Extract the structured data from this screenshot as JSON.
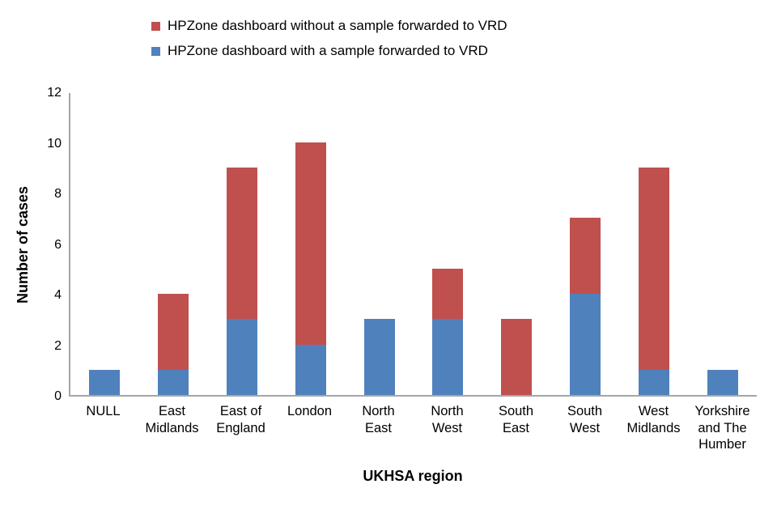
{
  "legend": {
    "items": [
      {
        "label": "HPZone dashboard without a sample forwarded to VRD",
        "color": "#c0504d"
      },
      {
        "label": "HPZone dashboard with a sample forwarded to VRD",
        "color": "#4f81bd"
      }
    ]
  },
  "axes": {
    "y_label": "Number of cases",
    "x_label": "UKHSA region",
    "y_ticks": [
      0,
      2,
      4,
      6,
      8,
      10,
      12
    ]
  },
  "chart_data": {
    "type": "bar",
    "stacked": true,
    "title": "",
    "xlabel": "UKHSA region",
    "ylabel": "Number of cases",
    "ylim": [
      0,
      12
    ],
    "grid": false,
    "legend_position": "top",
    "categories": [
      "NULL",
      "East Midlands",
      "East of England",
      "London",
      "North East",
      "North West",
      "South East",
      "South West",
      "West Midlands",
      "Yorkshire and The Humber"
    ],
    "series": [
      {
        "name": "HPZone dashboard with a sample forwarded to VRD",
        "color": "#4f81bd",
        "values": [
          1,
          1,
          3,
          2,
          3,
          3,
          0,
          4,
          1,
          1
        ]
      },
      {
        "name": "HPZone dashboard without a sample forwarded to VRD",
        "color": "#c0504d",
        "values": [
          0,
          3,
          6,
          8,
          0,
          2,
          3,
          3,
          8,
          0
        ]
      }
    ],
    "totals": [
      1,
      4,
      9,
      10,
      3,
      5,
      3,
      7,
      9,
      1
    ]
  }
}
